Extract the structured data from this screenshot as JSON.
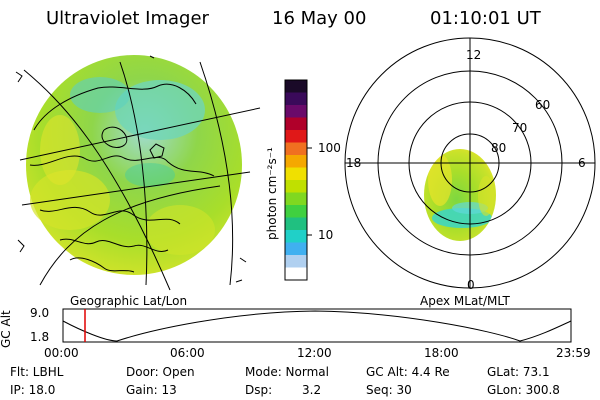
{
  "header": {
    "instrument": "Ultraviolet Imager",
    "date": "16 May 00",
    "time": "01:10:01 UT"
  },
  "colorbar": {
    "unit_label": "photon cm⁻²s⁻¹",
    "tick_labels": [
      "100",
      "10"
    ],
    "colors_top_to_bottom": [
      "#1a0a28",
      "#3a0a5a",
      "#6a0a6a",
      "#b0002a",
      "#e01818",
      "#f07020",
      "#f5a800",
      "#f0e000",
      "#c0e000",
      "#80d820",
      "#40d040",
      "#20c080",
      "#20d0c8",
      "#40b0f0",
      "#b0d0f0",
      "#ffffff"
    ]
  },
  "left_map": {
    "caption": "Geographic Lat/Lon"
  },
  "right_map": {
    "caption": "Apex MLat/MLT",
    "mlt_labels": [
      "12",
      "18",
      "6",
      "0"
    ],
    "lat_labels": [
      "60",
      "70",
      "80"
    ]
  },
  "altitude_plot": {
    "ylabel": "GC Alt",
    "yticks": [
      "9.0",
      "1.8"
    ],
    "xticks": [
      "00:00",
      "06:00",
      "12:00",
      "18:00",
      "23:59"
    ]
  },
  "info": {
    "flt": "Flt: LBHL",
    "ip": "IP: 18.0",
    "door": "Door: Open",
    "gain": "Gain: 13",
    "mode": "Mode: Normal",
    "dsp": "Dsp:",
    "dsp_value": "3.2",
    "gc_alt": "GC Alt: 4.4 Re",
    "seq": "Seq: 30",
    "glat": "GLat: 73.1",
    "glon": "GLon: 300.8"
  },
  "colors": {
    "current_time_marker": "#e00000",
    "emission_base": "#a8de2a",
    "emission_bright": "#3ad6c8",
    "emission_hot": "#e8e828"
  }
}
